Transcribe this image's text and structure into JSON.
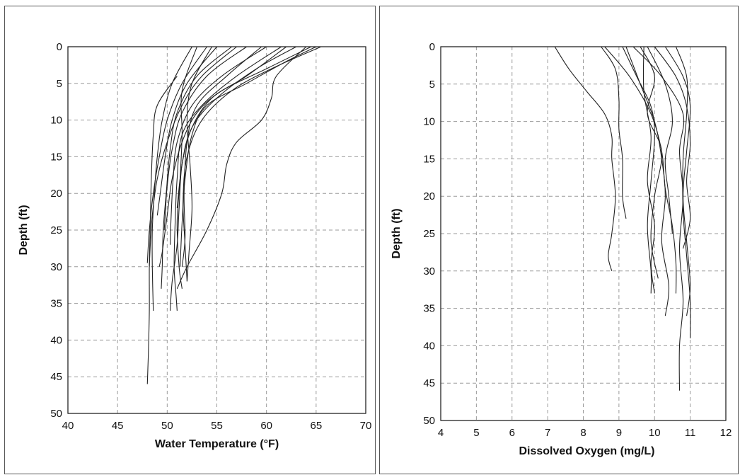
{
  "chart_data": [
    {
      "type": "line",
      "title": "",
      "xlabel": "Water Temperature (°F)",
      "ylabel": "Depth (ft)",
      "xlim": [
        40,
        70
      ],
      "ylim": [
        0,
        50
      ],
      "y_inverted": true,
      "xticks": [
        "40",
        "45",
        "50",
        "55",
        "60",
        "65",
        "70"
      ],
      "yticks": [
        "0",
        "5",
        "10",
        "15",
        "20",
        "25",
        "30",
        "35",
        "40",
        "45",
        "50"
      ],
      "grid": true,
      "line_color": "#222222",
      "series": [
        {
          "x": [
            51.0,
            49.0,
            48.6,
            48.4,
            48.3,
            48.2,
            48.2,
            48.1,
            48.0
          ],
          "y": [
            4,
            8,
            12,
            18,
            24,
            30,
            36,
            42,
            46
          ]
        },
        {
          "x": [
            52.5,
            50.5,
            49.5,
            49.0,
            48.7,
            48.5,
            48.5,
            48.6
          ],
          "y": [
            0,
            5,
            10,
            15,
            20,
            25,
            30,
            36
          ]
        },
        {
          "x": [
            54.0,
            51.5,
            50.0,
            49.2,
            48.6,
            48.2,
            48.0
          ],
          "y": [
            0,
            5,
            10,
            15,
            20,
            25,
            29.5
          ]
        },
        {
          "x": [
            55.0,
            52.0,
            50.5,
            49.8,
            49.3,
            49.0
          ],
          "y": [
            0,
            5,
            10,
            15,
            20,
            23
          ]
        },
        {
          "x": [
            56.5,
            53.0,
            51.0,
            50.3,
            49.9,
            49.6,
            49.5,
            49.4
          ],
          "y": [
            0,
            4,
            9,
            14,
            20,
            25,
            30,
            33
          ]
        },
        {
          "x": [
            58.0,
            54.0,
            51.5,
            50.5,
            50.0,
            49.8,
            49.7
          ],
          "y": [
            0,
            4,
            9,
            14,
            19,
            23,
            25
          ]
        },
        {
          "x": [
            60.0,
            55.5,
            52.5,
            51.0,
            50.6,
            50.4,
            50.3
          ],
          "y": [
            0,
            4,
            8,
            13,
            18,
            23,
            27
          ]
        },
        {
          "x": [
            61.5,
            57.0,
            53.5,
            51.5,
            51.0,
            50.8,
            50.7,
            50.9,
            51.0
          ],
          "y": [
            0,
            4,
            8,
            12,
            18,
            24,
            30,
            34,
            36
          ]
        },
        {
          "x": [
            63.0,
            59.0,
            55.0,
            52.5,
            51.5,
            51.2,
            51.0,
            50.5,
            50.3
          ],
          "y": [
            0,
            3,
            7,
            11,
            16,
            22,
            27,
            32,
            36
          ]
        },
        {
          "x": [
            65.5,
            60.5,
            56.5,
            53.5,
            52.0,
            51.6,
            51.8,
            52.0
          ],
          "y": [
            0,
            3,
            6,
            10,
            15,
            21,
            27,
            32
          ]
        },
        {
          "x": [
            64.0,
            61.0,
            60.5,
            59.5,
            57.0,
            56.0,
            55.5,
            54.0,
            52.0,
            51.0
          ],
          "y": [
            0,
            4,
            7,
            10,
            13,
            16,
            20,
            25,
            30,
            33
          ]
        },
        {
          "x": [
            59.5,
            56.0,
            53.0,
            52.0,
            51.7,
            51.8,
            51.5
          ],
          "y": [
            0,
            4,
            8,
            13,
            20,
            26,
            30
          ]
        },
        {
          "x": [
            62.0,
            58.0,
            54.5,
            52.5,
            51.5,
            51.0
          ],
          "y": [
            0,
            4,
            7,
            11,
            16,
            22
          ]
        },
        {
          "x": [
            64.5,
            60.0,
            55.5,
            53.0,
            51.5,
            50.5,
            50.0,
            49.5,
            49.2
          ],
          "y": [
            0,
            3,
            6,
            9,
            13,
            18,
            23,
            28,
            30
          ]
        },
        {
          "x": [
            57.0,
            53.5,
            51.5,
            50.0,
            49.0,
            48.5,
            48.3,
            48.2
          ],
          "y": [
            0,
            4,
            8,
            13,
            18,
            23,
            27,
            30
          ]
        },
        {
          "x": [
            53.0,
            51.5,
            51.5,
            51.3,
            51.0,
            51.2,
            51.5
          ],
          "y": [
            0,
            6,
            12,
            18,
            24,
            30,
            33
          ]
        },
        {
          "x": [
            54.5,
            52.5,
            52.0,
            52.3,
            52.5,
            52.2,
            52.0
          ],
          "y": [
            0,
            5,
            10,
            16,
            22,
            28,
            32
          ]
        },
        {
          "x": [
            65.0,
            62.0,
            58.0,
            54.0,
            52.5,
            51.8,
            51.5,
            51.3
          ],
          "y": [
            0,
            2,
            5,
            8,
            12,
            18,
            24,
            30
          ]
        }
      ]
    },
    {
      "type": "line",
      "title": "",
      "xlabel": "Dissolved Oxygen (mg/L)",
      "ylabel": "Depth (ft)",
      "xlim": [
        4,
        12
      ],
      "ylim": [
        0,
        50
      ],
      "y_inverted": true,
      "xticks": [
        "4",
        "5",
        "6",
        "7",
        "8",
        "9",
        "10",
        "11",
        "12"
      ],
      "yticks": [
        "0",
        "5",
        "10",
        "15",
        "20",
        "25",
        "30",
        "35",
        "40",
        "45",
        "50"
      ],
      "grid": true,
      "line_color": "#222222",
      "series": [
        {
          "x": [
            7.2,
            7.6,
            8.1,
            8.6,
            8.8,
            8.8,
            8.9,
            8.8,
            8.7,
            8.8
          ],
          "y": [
            0,
            3,
            6,
            9,
            12,
            15,
            20,
            25,
            28,
            30
          ]
        },
        {
          "x": [
            8.5,
            8.9,
            9.0,
            9.0,
            9.1,
            9.1,
            9.2
          ],
          "y": [
            0,
            3,
            7,
            11,
            15,
            20,
            23
          ]
        },
        {
          "x": [
            9.1,
            9.5,
            9.9,
            10.0,
            9.9,
            9.8,
            9.9,
            9.9
          ],
          "y": [
            0,
            4,
            8,
            12,
            18,
            24,
            30,
            33
          ]
        },
        {
          "x": [
            9.2,
            9.6,
            10.0,
            10.2,
            10.3,
            10.2,
            10.4,
            10.3
          ],
          "y": [
            0,
            5,
            10,
            15,
            20,
            26,
            32,
            36
          ]
        },
        {
          "x": [
            8.6,
            9.3,
            9.9,
            10.2,
            10.3,
            10.5,
            10.6,
            10.6
          ],
          "y": [
            0,
            4,
            9,
            14,
            19,
            24,
            29,
            33
          ]
        },
        {
          "x": [
            9.7,
            9.7,
            9.9,
            9.8,
            10.0,
            9.9,
            10.0
          ],
          "y": [
            0,
            6,
            12,
            18,
            24,
            29,
            33
          ]
        },
        {
          "x": [
            9.6,
            10.0,
            9.8,
            10.2,
            10.0,
            9.9,
            10.1
          ],
          "y": [
            0,
            4,
            9,
            14,
            20,
            26,
            31
          ]
        },
        {
          "x": [
            10.3,
            10.8,
            11.0,
            10.9,
            10.8,
            10.9,
            11.0,
            10.9
          ],
          "y": [
            0,
            4,
            8,
            14,
            20,
            26,
            32,
            36
          ]
        },
        {
          "x": [
            10.6,
            10.9,
            10.9,
            10.8,
            10.8,
            10.9,
            11.0,
            11.0
          ],
          "y": [
            0,
            4,
            9,
            15,
            22,
            28,
            34,
            39
          ]
        },
        {
          "x": [
            9.4,
            10.2,
            10.8,
            10.7,
            10.8,
            10.7,
            10.8,
            10.7,
            10.7
          ],
          "y": [
            0,
            4,
            9,
            14,
            20,
            27,
            34,
            40,
            46
          ]
        },
        {
          "x": [
            10.0,
            10.6,
            10.9,
            11.0,
            10.9,
            11.0,
            10.8
          ],
          "y": [
            0,
            4,
            8,
            13,
            18,
            23,
            27
          ]
        },
        {
          "x": [
            9.8,
            10.3,
            10.5,
            10.3,
            10.4,
            10.5
          ],
          "y": [
            0,
            5,
            10,
            15,
            20,
            25
          ]
        }
      ]
    }
  ]
}
